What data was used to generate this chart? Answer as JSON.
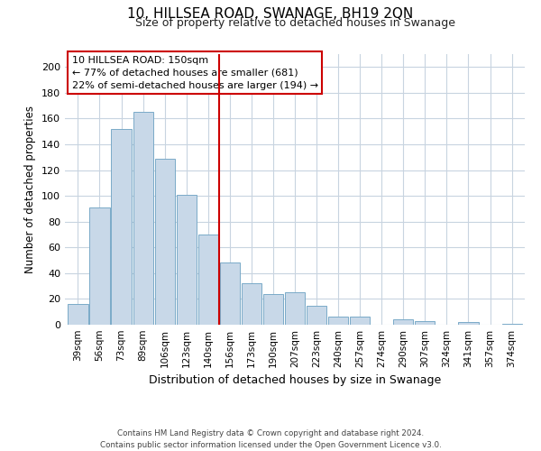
{
  "title1": "10, HILLSEA ROAD, SWANAGE, BH19 2QN",
  "title2": "Size of property relative to detached houses in Swanage",
  "xlabel": "Distribution of detached houses by size in Swanage",
  "ylabel": "Number of detached properties",
  "bar_labels": [
    "39sqm",
    "56sqm",
    "73sqm",
    "89sqm",
    "106sqm",
    "123sqm",
    "140sqm",
    "156sqm",
    "173sqm",
    "190sqm",
    "207sqm",
    "223sqm",
    "240sqm",
    "257sqm",
    "274sqm",
    "290sqm",
    "307sqm",
    "324sqm",
    "341sqm",
    "357sqm",
    "374sqm"
  ],
  "bar_values": [
    16,
    91,
    152,
    165,
    129,
    101,
    70,
    48,
    32,
    24,
    25,
    15,
    6,
    6,
    0,
    4,
    3,
    0,
    2,
    0,
    1
  ],
  "bar_color": "#c8d8e8",
  "bar_edgecolor": "#7aaac8",
  "vline_color": "#cc0000",
  "vline_x": 6.5,
  "annotation_line1": "10 HILLSEA ROAD: 150sqm",
  "annotation_line2": "← 77% of detached houses are smaller (681)",
  "annotation_line3": "22% of semi-detached houses are larger (194) →",
  "annotation_box_color": "#ffffff",
  "annotation_box_edgecolor": "#cc0000",
  "ylim": [
    0,
    210
  ],
  "yticks": [
    0,
    20,
    40,
    60,
    80,
    100,
    120,
    140,
    160,
    180,
    200
  ],
  "footer1": "Contains HM Land Registry data © Crown copyright and database right 2024.",
  "footer2": "Contains public sector information licensed under the Open Government Licence v3.0.",
  "background_color": "#ffffff",
  "grid_color": "#c8d4e0"
}
